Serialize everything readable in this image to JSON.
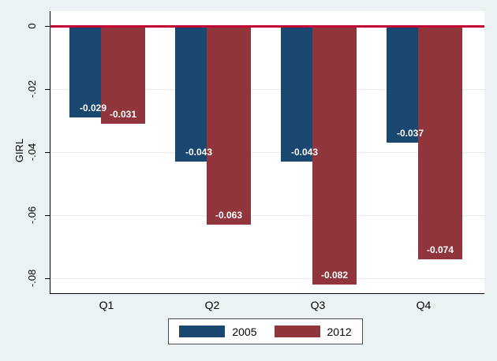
{
  "chart_data": {
    "type": "bar",
    "title": "",
    "xlabel": "",
    "ylabel": "GIRL",
    "categories": [
      "Q1",
      "Q2",
      "Q3",
      "Q4"
    ],
    "series": [
      {
        "name": "2005",
        "color": "#1a476f",
        "values": [
          -0.029,
          -0.043,
          -0.043,
          -0.037
        ],
        "labels": [
          "-0.029",
          "-0.043",
          "-0.043",
          "-0.037"
        ]
      },
      {
        "name": "2012",
        "color": "#90353b",
        "values": [
          -0.031,
          -0.063,
          -0.082,
          -0.074
        ],
        "labels": [
          "-0.031",
          "-0.063",
          "-0.082",
          "-0.074"
        ]
      }
    ],
    "yticks": [
      {
        "value": 0,
        "label": "0"
      },
      {
        "value": -0.02,
        "label": "-.02"
      },
      {
        "value": -0.04,
        "label": "-.04"
      },
      {
        "value": -0.06,
        "label": "-.06"
      },
      {
        "value": -0.08,
        "label": "-.08"
      }
    ],
    "ylim": [
      0,
      -0.085
    ],
    "grid": true,
    "legend_position": "bottom",
    "zero_line_color": "#c10534",
    "background_color": "#eaf2f3",
    "plot_background_color": "#ffffff"
  }
}
